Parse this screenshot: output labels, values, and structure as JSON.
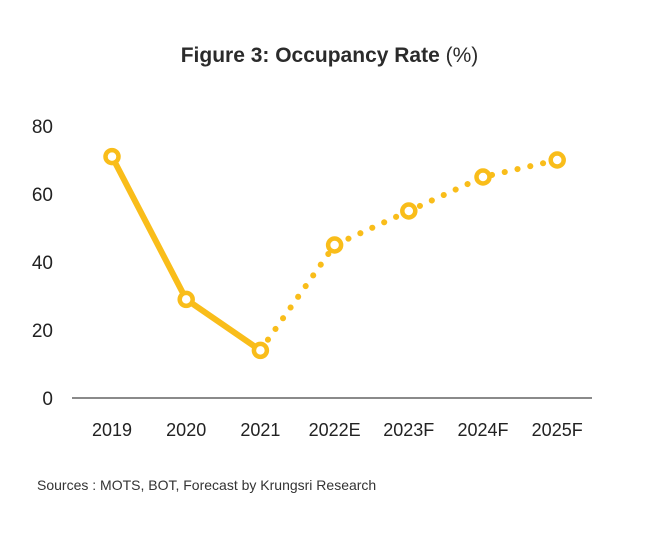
{
  "title_main": "Figure 3: Occupancy Rate",
  "title_unit": "(%)",
  "source": "Sources : MOTS,  BOT,  Forecast by Krungsri Research",
  "colors": {
    "line": "#f9bd1a",
    "axis": "#444444",
    "text": "#222222"
  },
  "chart_data": {
    "type": "line",
    "categories": [
      "2019",
      "2020",
      "2021",
      "2022E",
      "2023F",
      "2024F",
      "2025F"
    ],
    "series": [
      {
        "values": [
          71,
          29,
          14,
          45,
          55,
          65,
          70
        ],
        "style": "solid-then-dotted",
        "dotted_from_index": 2
      }
    ],
    "ylim": [
      0,
      80
    ],
    "yticks": [
      0,
      20,
      40,
      60,
      80
    ],
    "grid": false,
    "title": "Figure 3: Occupancy Rate (%)",
    "xlabel": "",
    "ylabel": ""
  }
}
